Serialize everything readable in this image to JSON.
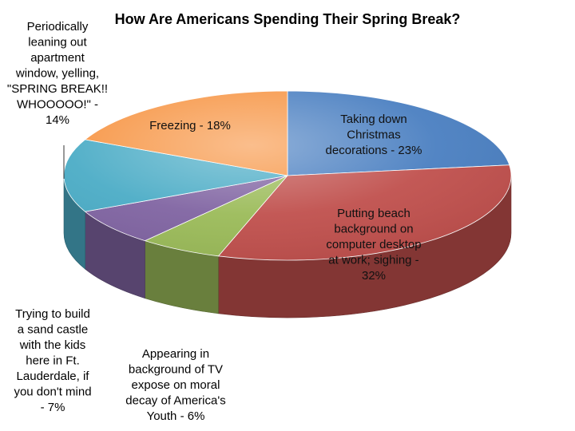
{
  "chart_data": {
    "type": "pie",
    "title": "How Are Americans Spending Their Spring Break?",
    "slices": [
      {
        "label": "Taking down Christmas decorations - 23%",
        "lines": [
          "Taking down",
          "Christmas",
          "decorations - 23%"
        ],
        "value": 23,
        "color": "#4a7fc1"
      },
      {
        "label": "Putting beach background on computer desktop at work; sighing - 32%",
        "lines": [
          "Putting beach",
          "background on",
          "computer desktop",
          "at work; sighing -",
          "32%"
        ],
        "value": 32,
        "color": "#c0504d"
      },
      {
        "label": "Appearing in background of TV expose on moral decay of America's Youth - 6%",
        "lines": [
          "Appearing in",
          "background of TV",
          "expose on moral",
          "decay of America's",
          "Youth - 6%"
        ],
        "value": 6,
        "color": "#9bbb59"
      },
      {
        "label": "Trying to build a sand castle with the kids here in Ft. Lauderdale, if you don't mind - 7%",
        "lines": [
          "Trying to build",
          "a sand castle",
          "with the kids",
          "here in Ft.",
          "Lauderdale, if",
          "you don't mind",
          "- 7%"
        ],
        "value": 7,
        "color": "#8064a2"
      },
      {
        "label": "Periodically leaning out apartment window, yelling, \"SPRING BREAK!! WHOOOOO!\" - 14%",
        "lines": [
          "Periodically",
          "leaning out",
          "apartment",
          "window, yelling,",
          "\"SPRING BREAK!!",
          "WHOOOOO!\" -",
          "14%"
        ],
        "value": 14,
        "color": "#4bacc6"
      },
      {
        "label": "Freezing - 18%",
        "lines": [
          "Freezing - 18%"
        ],
        "value": 18,
        "color": "#f79646"
      }
    ]
  }
}
